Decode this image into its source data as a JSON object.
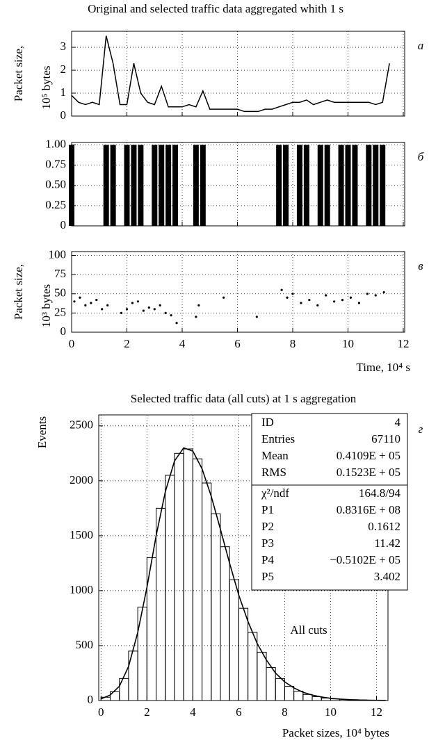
{
  "chart_data": [
    {
      "type": "line",
      "title": "Original and selected traffic data aggregated whith 1 s",
      "panel_label": "а",
      "ylabel": [
        "Packet size,",
        "10⁵ bytes"
      ],
      "color": "#000000",
      "x": [
        0,
        0.25,
        0.5,
        0.75,
        1,
        1.25,
        1.5,
        1.75,
        2,
        2.25,
        2.5,
        2.75,
        3,
        3.25,
        3.5,
        3.75,
        4,
        4.25,
        4.5,
        4.75,
        5,
        5.25,
        5.5,
        5.75,
        6,
        6.25,
        6.5,
        6.75,
        7,
        7.25,
        7.5,
        7.75,
        8,
        8.25,
        8.5,
        8.75,
        9,
        9.25,
        9.5,
        9.75,
        10,
        10.25,
        10.5,
        10.75,
        11,
        11.25,
        11.5
      ],
      "values": [
        0.9,
        0.6,
        0.5,
        0.6,
        0.5,
        3.5,
        2.3,
        0.5,
        0.5,
        2.3,
        1.0,
        0.6,
        0.5,
        1.3,
        0.4,
        0.4,
        0.4,
        0.5,
        0.4,
        1.1,
        0.3,
        0.3,
        0.3,
        0.3,
        0.3,
        0.2,
        0.2,
        0.2,
        0.3,
        0.3,
        0.4,
        0.5,
        0.6,
        0.6,
        0.7,
        0.5,
        0.6,
        0.7,
        0.6,
        0.6,
        0.6,
        0.6,
        0.6,
        0.6,
        0.5,
        0.6,
        2.3
      ],
      "ylim": [
        0,
        3.7
      ],
      "yticks": [
        0,
        1,
        2,
        3
      ],
      "grid": true
    },
    {
      "type": "bar",
      "panel_label": "б",
      "color": "#000000",
      "x": [
        0,
        0.25,
        0.5,
        0.75,
        1,
        1.25,
        1.5,
        1.75,
        2,
        2.25,
        2.5,
        2.75,
        3,
        3.25,
        3.5,
        3.75,
        4,
        4.25,
        4.5,
        4.75,
        5,
        5.25,
        5.5,
        5.75,
        6,
        6.25,
        6.5,
        6.75,
        7,
        7.25,
        7.5,
        7.75,
        8,
        8.25,
        8.5,
        8.75,
        9,
        9.25,
        9.5,
        9.75,
        10,
        10.25,
        10.5,
        10.75,
        11,
        11.25,
        11.5
      ],
      "values": [
        1,
        0,
        0,
        0,
        0,
        1,
        1,
        0,
        1,
        1,
        1,
        0,
        1,
        1,
        1,
        1,
        0,
        0,
        1,
        1,
        0,
        0,
        0,
        0,
        0,
        0,
        0,
        0,
        0,
        0,
        1,
        1,
        0,
        1,
        1,
        0,
        1,
        1,
        0,
        1,
        1,
        1,
        0,
        1,
        1,
        1,
        0
      ],
      "ylim": [
        0,
        1.03
      ],
      "yticks": [
        0,
        0.25,
        {
          "value": 0.5,
          "label": "0.50"
        },
        0.75,
        {
          "value": 1,
          "label": "1.00"
        }
      ],
      "grid": true
    },
    {
      "type": "scatter",
      "panel_label": "в",
      "ylabel": [
        "Packet size,",
        "10³ bytes"
      ],
      "xlabel": "Time, 10⁴ s",
      "color": "#000000",
      "x": [
        0.1,
        0.3,
        0.5,
        0.7,
        0.9,
        1.1,
        1.3,
        1.8,
        2.0,
        2.2,
        2.4,
        2.6,
        2.8,
        3.0,
        3.2,
        3.4,
        3.6,
        3.8,
        4.5,
        4.6,
        5.5,
        6.7,
        7.6,
        7.8,
        8.0,
        8.3,
        8.6,
        8.9,
        9.2,
        9.5,
        9.8,
        10.1,
        10.4,
        10.7,
        11.0,
        11.3
      ],
      "values": [
        40,
        45,
        35,
        38,
        42,
        30,
        35,
        25,
        30,
        38,
        40,
        28,
        32,
        30,
        35,
        25,
        22,
        12,
        20,
        35,
        45,
        20,
        55,
        45,
        50,
        38,
        42,
        35,
        48,
        40,
        42,
        45,
        38,
        50,
        48,
        52
      ],
      "xlim": [
        0,
        12.05
      ],
      "xticks": [
        0,
        2,
        4,
        6,
        8,
        10,
        12
      ],
      "ylim": [
        0,
        105
      ],
      "yticks": [
        0,
        25,
        50,
        75,
        100
      ],
      "grid": true
    },
    {
      "type": "histogram",
      "title": "Selected traffic data (all cuts) at 1 s aggregation",
      "panel_label": "г",
      "ylabel": "Events",
      "xlabel": "Packet sizes, 10⁴ bytes",
      "color": "#000000",
      "bins": [
        0,
        0.4,
        0.8,
        1.2,
        1.6,
        2.0,
        2.4,
        2.8,
        3.2,
        3.6,
        4.0,
        4.4,
        4.8,
        5.2,
        5.6,
        6.0,
        6.4,
        6.8,
        7.2,
        7.6,
        8.0,
        8.4,
        8.8,
        9.2,
        9.6,
        10.0,
        10.4,
        10.8,
        11.2,
        11.6,
        12.0,
        12.4
      ],
      "values": [
        30,
        80,
        200,
        450,
        850,
        1300,
        1750,
        2050,
        2250,
        2290,
        2200,
        1980,
        1700,
        1400,
        1100,
        840,
        620,
        440,
        300,
        200,
        130,
        85,
        55,
        35,
        22,
        15,
        10,
        7,
        5,
        3,
        2
      ],
      "fit": {
        "x": [
          0,
          0.4,
          0.8,
          1.2,
          1.6,
          2.0,
          2.4,
          2.8,
          3.2,
          3.6,
          4.0,
          4.4,
          4.8,
          5.2,
          5.6,
          6.0,
          6.4,
          6.8,
          7.2,
          7.6,
          8.0,
          8.4,
          8.8,
          9.2,
          9.6,
          10.0,
          10.4,
          10.8,
          11.2,
          11.6,
          12.0,
          12.4
        ],
        "values": [
          15,
          50,
          130,
          310,
          620,
          1030,
          1500,
          1900,
          2180,
          2300,
          2270,
          2110,
          1860,
          1560,
          1250,
          960,
          720,
          520,
          370,
          250,
          170,
          115,
          75,
          50,
          32,
          20,
          13,
          8,
          5,
          3,
          2,
          1
        ]
      },
      "xlim": [
        -0.1,
        12.5
      ],
      "xticks": [
        0,
        2,
        4,
        6,
        8,
        10,
        12
      ],
      "ylim": [
        0,
        2600
      ],
      "yticks": [
        0,
        500,
        1000,
        1500,
        2000,
        2500
      ],
      "grid": true,
      "stats": [
        [
          "ID",
          4
        ],
        [
          "Entries",
          67110
        ],
        [
          "Mean",
          "0.4109E + 05"
        ],
        [
          "RMS",
          "0.1523E + 05"
        ]
      ],
      "fit_stats": [
        [
          "χ²/ndf",
          "164.8/94"
        ],
        [
          "P1",
          "0.8316E + 08"
        ],
        [
          "P2",
          "0.1612"
        ],
        [
          "P3",
          "11.42"
        ],
        [
          "P4",
          "−0.5102E + 05"
        ],
        [
          "P5",
          "3.402"
        ]
      ],
      "annotation": "All cuts"
    }
  ]
}
